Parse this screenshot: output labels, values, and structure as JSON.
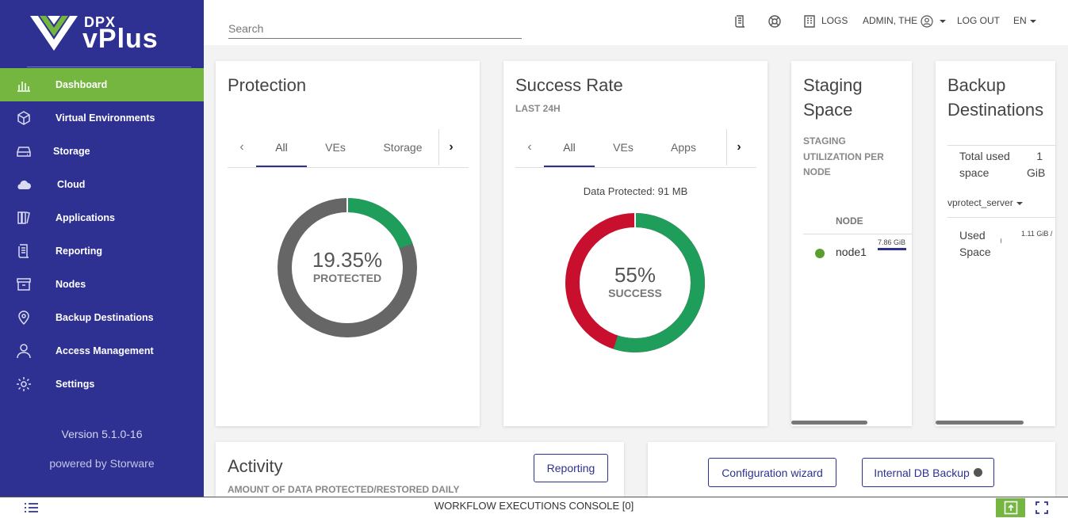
{
  "brand": {
    "small": "DPX",
    "main": "vPlus"
  },
  "sidebar": {
    "items": [
      {
        "label": "Dashboard",
        "icon": "bar-chart-icon",
        "active": true
      },
      {
        "label": "Virtual Environments",
        "icon": "cube-icon"
      },
      {
        "label": "Storage",
        "icon": "drive-icon"
      },
      {
        "label": "Cloud",
        "icon": "cloud-icon"
      },
      {
        "label": "Applications",
        "icon": "applications-icon"
      },
      {
        "label": "Reporting",
        "icon": "report-icon"
      },
      {
        "label": "Nodes",
        "icon": "archive-box-icon"
      },
      {
        "label": "Backup Destinations",
        "icon": "location-pin-icon"
      },
      {
        "label": "Access Management",
        "icon": "user-icon"
      },
      {
        "label": "Settings",
        "icon": "gear-icon"
      }
    ],
    "version": "Version 5.1.0-16",
    "powered_by": "powered by Storware"
  },
  "topbar": {
    "search_placeholder": "Search",
    "logs": "LOGS",
    "user": "ADMIN, THE",
    "logout": "LOG OUT",
    "language": "EN"
  },
  "protection": {
    "title": "Protection",
    "tabs": [
      "All",
      "VEs",
      "Storage"
    ],
    "percent": 19.35,
    "percent_label": "19.35%",
    "status_label": "PROTECTED",
    "colors": {
      "protected": "#1e9e5a",
      "unprotected": "#666666"
    }
  },
  "success_rate": {
    "title": "Success Rate",
    "subtitle": "LAST 24H",
    "tabs": [
      "All",
      "VEs",
      "Apps"
    ],
    "data_protected": "Data Protected: 91 MB",
    "percent": 55,
    "percent_label": "55%",
    "status_label": "SUCCESS",
    "colors": {
      "success": "#1e9e5a",
      "failed": "#c8102e"
    }
  },
  "staging": {
    "title_line1": "Staging",
    "title_line2": "Space",
    "subtitle": "STAGING UTILIZATION PER NODE",
    "column": "NODE",
    "node_name": "node1",
    "node_status_color": "#5a9e2f",
    "usage_label": "7.86 GiB"
  },
  "backup_destinations": {
    "title_line1": "Backup",
    "title_line2": "Destinations",
    "total_label_line1": "Total used",
    "total_label_line2": "space",
    "total_value_line1": "1",
    "total_value_line2": "GiB",
    "server": "vprotect_server",
    "used_label_line1": "Used",
    "used_label_line2": "Space",
    "used_value": "1.11 GiB /"
  },
  "activity": {
    "title": "Activity",
    "subtitle": "AMOUNT OF DATA PROTECTED/RESTORED DAILY",
    "reporting_button": "Reporting"
  },
  "actions": {
    "config_wizard": "Configuration wizard",
    "db_backup": "Internal DB Backup"
  },
  "console": {
    "label": "WORKFLOW EXECUTIONS CONSOLE [0]"
  }
}
